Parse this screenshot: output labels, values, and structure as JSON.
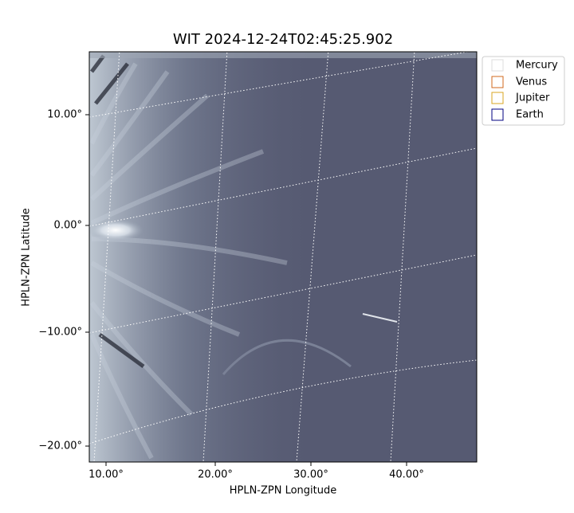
{
  "title": "WIT 2024-12-24T02:45:25.902",
  "x_axis": {
    "label": "HPLN-ZPN Longitude",
    "ticks": [
      "10.00°",
      "20.00°",
      "30.00°",
      "40.00°"
    ]
  },
  "y_axis": {
    "label": "HPLN-ZPN Latitude",
    "ticks": [
      "10.00°",
      "0.00°",
      "−10.00°",
      "−20.00°"
    ]
  },
  "legend": [
    "Mercury",
    "Venus",
    "Jupiter",
    "Earth"
  ]
}
